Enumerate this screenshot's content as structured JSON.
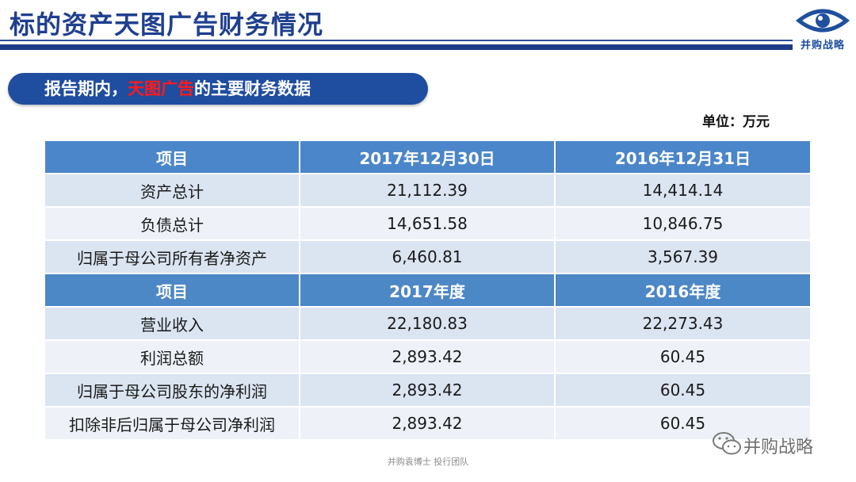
{
  "title": "标的资产天图广告财务情况",
  "logo": {
    "label": "并购战略",
    "icon": "eye-icon"
  },
  "section": {
    "prefix": "报告期内，",
    "highlight": "天图广告",
    "suffix": "的主要财务数据"
  },
  "unit": "单位：万元",
  "table": {
    "header1": [
      "项目",
      "2017年12月30日",
      "2016年12月31日"
    ],
    "rows1": [
      [
        "资产总计",
        "21,112.39",
        "14,414.14"
      ],
      [
        "负债总计",
        "14,651.58",
        "10,846.75"
      ],
      [
        "归属于母公司所有者净资产",
        "6,460.81",
        "3,567.39"
      ]
    ],
    "header2": [
      "项目",
      "2017年度",
      "2016年度"
    ],
    "rows2": [
      [
        "营业收入",
        "22,180.83",
        "22,273.43"
      ],
      [
        "利润总额",
        "2,893.42",
        "60.45"
      ],
      [
        "归属于母公司股东的净利润",
        "2,893.42",
        "60.45"
      ],
      [
        "扣除非后归属于母公司净利润",
        "2,893.42",
        "60.45"
      ]
    ]
  },
  "footer": "并购袁博士 投行团队",
  "watermark": {
    "text": "并购战略",
    "icon": "wechat-icon"
  }
}
